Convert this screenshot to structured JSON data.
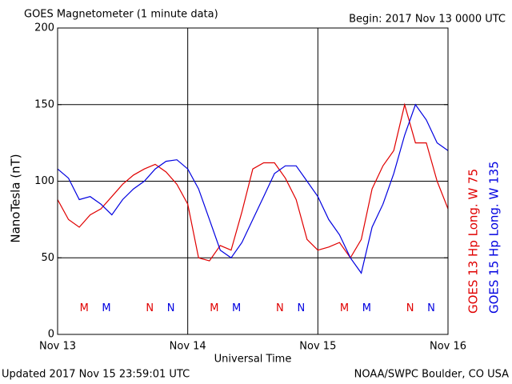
{
  "chart_data": {
    "type": "line",
    "title": "GOES Magnetometer (1 minute data)",
    "subtitle": "Begin:  2017 Nov 13 0000 UTC",
    "ylabel": "NanoTesla (nT)",
    "xlabel": "Universal Time",
    "x": [
      0,
      2,
      4,
      6,
      8,
      10,
      12,
      14,
      16,
      18,
      20,
      22,
      24,
      26,
      28,
      30,
      32,
      34,
      36,
      38,
      40,
      42,
      44,
      46,
      48,
      50,
      52,
      54,
      56,
      58,
      60,
      62,
      64,
      66,
      68,
      70,
      72
    ],
    "series": [
      {
        "name": "GOES 13 Hp  Long. W 75",
        "color": "#e00000",
        "values": [
          88,
          75,
          70,
          78,
          82,
          90,
          98,
          104,
          108,
          111,
          106,
          98,
          85,
          50,
          48,
          58,
          55,
          80,
          108,
          112,
          112,
          102,
          88,
          62,
          55,
          57,
          60,
          50,
          62,
          95,
          110,
          120,
          150,
          125,
          125,
          100,
          82
        ]
      },
      {
        "name": "GOES 15 Hp  Long. W 135",
        "color": "#0000e0",
        "values": [
          108,
          102,
          88,
          90,
          85,
          78,
          88,
          95,
          100,
          108,
          113,
          114,
          108,
          95,
          75,
          55,
          50,
          60,
          75,
          90,
          105,
          110,
          110,
          100,
          90,
          75,
          65,
          50,
          40,
          70,
          85,
          105,
          130,
          150,
          140,
          125,
          120
        ]
      }
    ],
    "markers": [
      {
        "label": "M",
        "x": 4.9,
        "y": 17,
        "series": 0
      },
      {
        "label": "M",
        "x": 9,
        "y": 17,
        "series": 1
      },
      {
        "label": "N",
        "x": 17,
        "y": 17,
        "series": 0
      },
      {
        "label": "N",
        "x": 20.9,
        "y": 17,
        "series": 1
      },
      {
        "label": "M",
        "x": 28.9,
        "y": 17,
        "series": 0
      },
      {
        "label": "M",
        "x": 33,
        "y": 17,
        "series": 1
      },
      {
        "label": "N",
        "x": 41,
        "y": 17,
        "series": 0
      },
      {
        "label": "N",
        "x": 44.9,
        "y": 17,
        "series": 1
      },
      {
        "label": "M",
        "x": 52.9,
        "y": 17,
        "series": 0
      },
      {
        "label": "M",
        "x": 57,
        "y": 17,
        "series": 1
      },
      {
        "label": "N",
        "x": 65,
        "y": 17,
        "series": 0
      },
      {
        "label": "N",
        "x": 68.9,
        "y": 17,
        "series": 1
      }
    ],
    "xlim": [
      0,
      72
    ],
    "xticks": [
      {
        "value": 0,
        "label": "Nov 13"
      },
      {
        "value": 24,
        "label": "Nov 14"
      },
      {
        "value": 48,
        "label": "Nov 15"
      },
      {
        "value": 72,
        "label": "Nov 16"
      }
    ],
    "ylim": [
      0,
      200
    ],
    "yticks": [
      0,
      50,
      100,
      150,
      200
    ],
    "grid": true,
    "footer_left": "Updated 2017 Nov 15 23:59:01 UTC",
    "footer_right": "NOAA/SWPC Boulder, CO USA"
  }
}
